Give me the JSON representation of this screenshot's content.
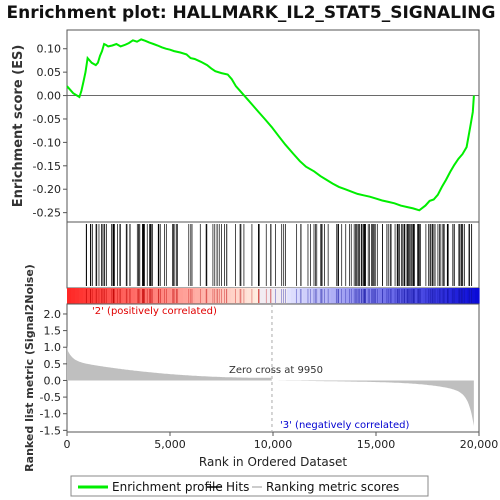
{
  "chart_data": {
    "type": "line",
    "title": "Enrichment plot: HALLMARK_IL2_STAT5_SIGNALING",
    "xlabel": "Rank in Ordered Dataset",
    "xlim": [
      0,
      20000
    ],
    "x_ticks": [
      "0",
      "5,000",
      "10,000",
      "15,000",
      "20,000"
    ],
    "panels": {
      "es": {
        "ylabel": "Enrichment score (ES)",
        "ylim": [
          -0.27,
          0.14
        ],
        "y_ticks": [
          "0.10",
          "0.05",
          "0.00",
          "-0.05",
          "-0.10",
          "-0.15",
          "-0.20",
          "-0.25"
        ],
        "y_tick_values": [
          0.1,
          0.05,
          0.0,
          -0.05,
          -0.1,
          -0.15,
          -0.2,
          -0.25
        ]
      },
      "metric": {
        "ylabel": "Ranked list metric (Signal2Noise)",
        "ylim": [
          -1.55,
          2.3
        ],
        "y_ticks": [
          "2.0",
          "1.5",
          "1.0",
          "0.5",
          "0.0",
          "-0.5",
          "-1.0",
          "-1.5"
        ],
        "y_tick_values": [
          2.0,
          1.5,
          1.0,
          0.5,
          0.0,
          -0.5,
          -1.0,
          -1.5
        ]
      }
    },
    "series": [
      {
        "name": "Enrichment profile",
        "color": "#00ee00",
        "x": [
          0,
          300,
          600,
          700,
          800,
          900,
          1000,
          1200,
          1400,
          1500,
          1600,
          1700,
          1800,
          1900,
          2000,
          2200,
          2400,
          2600,
          2800,
          3000,
          3200,
          3400,
          3600,
          3800,
          4000,
          4200,
          4400,
          4600,
          4800,
          5000,
          5200,
          5500,
          5800,
          6000,
          6200,
          6500,
          6800,
          7000,
          7200,
          7500,
          7800,
          8000,
          8200,
          8500,
          8800,
          9000,
          9300,
          9600,
          9950,
          10300,
          10600,
          11000,
          11300,
          11600,
          12000,
          12300,
          12600,
          12900,
          13200,
          13500,
          13800,
          14100,
          14400,
          14700,
          15000,
          15300,
          15600,
          15900,
          16200,
          16500,
          16800,
          17100,
          17400,
          17600,
          17800,
          18000,
          18200,
          18400,
          18600,
          18800,
          19000,
          19200,
          19400,
          19500,
          19600,
          19700,
          19750
        ],
        "y": [
          0.02,
          0.005,
          -0.003,
          0.01,
          0.03,
          0.05,
          0.08,
          0.07,
          0.065,
          0.07,
          0.085,
          0.095,
          0.11,
          0.108,
          0.105,
          0.107,
          0.11,
          0.105,
          0.108,
          0.112,
          0.118,
          0.115,
          0.12,
          0.117,
          0.113,
          0.11,
          0.107,
          0.103,
          0.1,
          0.098,
          0.095,
          0.092,
          0.088,
          0.08,
          0.078,
          0.072,
          0.065,
          0.058,
          0.052,
          0.048,
          0.045,
          0.035,
          0.02,
          0.005,
          -0.01,
          -0.02,
          -0.035,
          -0.05,
          -0.068,
          -0.088,
          -0.105,
          -0.125,
          -0.14,
          -0.152,
          -0.162,
          -0.172,
          -0.18,
          -0.188,
          -0.195,
          -0.2,
          -0.205,
          -0.21,
          -0.213,
          -0.216,
          -0.22,
          -0.224,
          -0.227,
          -0.23,
          -0.235,
          -0.238,
          -0.241,
          -0.245,
          -0.235,
          -0.225,
          -0.222,
          -0.212,
          -0.195,
          -0.18,
          -0.163,
          -0.148,
          -0.135,
          -0.125,
          -0.11,
          -0.085,
          -0.06,
          -0.035,
          0.0
        ]
      }
    ],
    "hits_label": "Hits",
    "metric_label": "Ranking metric scores",
    "annotations": {
      "positive": "'2' (positively correlated)",
      "negative": "'3' (negatively correlated)",
      "zero_cross": "Zero cross at 9950",
      "zero_cross_x": 9950
    },
    "colors": {
      "line": "#00ee00",
      "hits": "#000000",
      "pos_text": "#e00000",
      "neg_text": "#0000d0",
      "metric_fill": "#bfbfbf",
      "axis": "#777777"
    }
  }
}
